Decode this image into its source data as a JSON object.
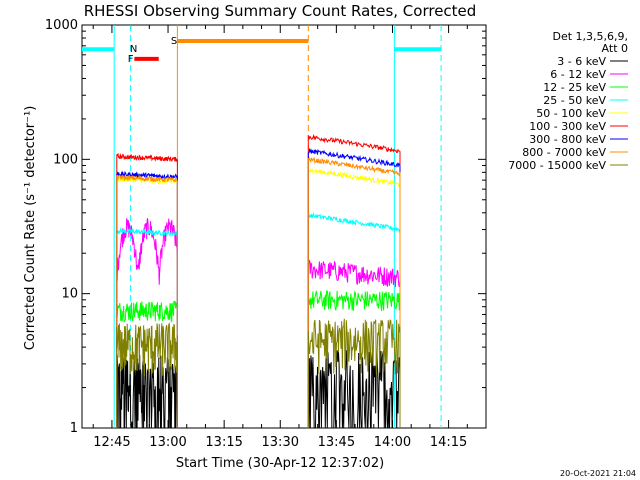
{
  "chart_data": {
    "type": "line",
    "title": "RHESSI Observing Summary Count Rates, Corrected",
    "xlabel": "Start Time (30-Apr-12 12:37:02)",
    "ylabel": "Corrected Count Rate (s⁻¹ detector⁻¹)",
    "y_scale": "log",
    "ylim": [
      1,
      1000
    ],
    "xlim_minutes_after_1237": [
      0,
      108
    ],
    "y_ticks": [
      "1",
      "10",
      "100",
      "1000"
    ],
    "x_ticks": [
      {
        "label": "12:45",
        "t": 8
      },
      {
        "label": "13:00",
        "t": 23
      },
      {
        "label": "13:15",
        "t": 38
      },
      {
        "label": "13:30",
        "t": 53
      },
      {
        "label": "13:45",
        "t": 68
      },
      {
        "label": "14:00",
        "t": 83
      },
      {
        "label": "14:15",
        "t": 98
      }
    ],
    "legend_header": [
      "Det 1,3,5,6,9,",
      "Att 0"
    ],
    "legend_position": "right",
    "segments": [
      [
        9.3,
        25.5
      ],
      [
        60.5,
        85.0
      ]
    ],
    "series": [
      {
        "name": "3 - 6 keV",
        "color": "#000000",
        "levels": [
          1.1,
          1.2
        ],
        "profile": "noisy-low"
      },
      {
        "name": "6 - 12 keV",
        "color": "#ff00ff",
        "levels": [
          25,
          14
        ],
        "profile": "bumpy"
      },
      {
        "name": "12 - 25 keV",
        "color": "#00ff00",
        "levels": [
          7.5,
          9
        ],
        "profile": "flat"
      },
      {
        "name": "25 - 50 keV",
        "color": "#00ffff",
        "levels": [
          28,
          30
        ],
        "profile": "decay"
      },
      {
        "name": "50 - 100 keV",
        "color": "#ffff00",
        "levels": [
          68,
          65
        ],
        "profile": "decay"
      },
      {
        "name": "100 - 300 keV",
        "color": "#ff0000",
        "levels": [
          100,
          115
        ],
        "profile": "decay"
      },
      {
        "name": "300 - 800 keV",
        "color": "#0000ff",
        "levels": [
          74,
          90
        ],
        "profile": "decay"
      },
      {
        "name": "800 - 7000 keV",
        "color": "#ff8c00",
        "levels": [
          70,
          78
        ],
        "profile": "decay"
      },
      {
        "name": "7000 - 15000 keV",
        "color": "#808000",
        "levels": [
          4.2,
          4.5
        ],
        "profile": "noisy-mid"
      }
    ],
    "flags": [
      {
        "label": "N",
        "color": "#00ffff",
        "ranges": [
          [
            -1.5,
            8.6
          ],
          [
            83.5,
            96.0
          ]
        ],
        "dashed_at": [
          13.0,
          96.0
        ],
        "level": 660
      },
      {
        "label": "F",
        "color": "#ff0000",
        "ranges": [
          [
            14.0,
            20.5
          ]
        ],
        "level": 560
      },
      {
        "label": "S",
        "color": "#ff8c00",
        "ranges": [
          [
            25.5,
            60.5
          ]
        ],
        "level": 760,
        "solid_at": [
          25.5
        ],
        "dashed_at": [
          60.5
        ]
      }
    ],
    "timestamp": "20-Oct-2021 21:04"
  }
}
